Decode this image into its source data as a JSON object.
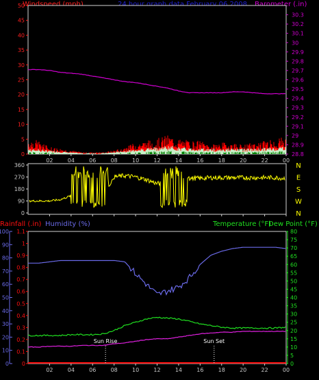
{
  "header": {
    "left_label": "Windspeed (mph)",
    "center_label": "24 hour graph data   February 06 2008",
    "right_label": "Barometer (.in)"
  },
  "colors": {
    "frame": "#d4d4d4",
    "wind_axis": "#ff2020",
    "barometer": "#d000d0",
    "title": "#2020d0",
    "direction": "#ffff00",
    "humidity": "#6a6ae8",
    "temperature": "#20e020",
    "dewpoint": "#e020e0",
    "rainfall": "#ff1010",
    "gust": "#ff0000",
    "wind_avg": "#c8f0c8",
    "wind_core": "#008000",
    "sun_marker": "#ffffff"
  },
  "x_axis": {
    "tick_labels": [
      "02",
      "04",
      "06",
      "08",
      "10",
      "12",
      "14",
      "16",
      "18",
      "20",
      "22",
      "00"
    ]
  },
  "chart_data": [
    {
      "type": "line",
      "name": "wind-barometer-panel",
      "left_axis": {
        "label": "Windspeed (mph)",
        "ylim": [
          0,
          50
        ],
        "ticks": [
          0,
          5,
          10,
          15,
          20,
          25,
          30,
          35,
          40,
          45,
          50
        ]
      },
      "right_axis": {
        "label": "Barometer (.in)",
        "ylim": [
          28.8,
          30.4
        ],
        "ticks": [
          "28.8",
          "28.9",
          "29",
          "29.1",
          "29.2",
          "29.3",
          "29.4",
          "29.5",
          "29.6",
          "29.7",
          "29.8",
          "29.9",
          "30",
          "30.1",
          "30.2",
          "30.3"
        ]
      },
      "x": [
        0,
        1,
        2,
        3,
        4,
        5,
        6,
        7,
        8,
        9,
        10,
        11,
        12,
        13,
        14,
        15,
        16,
        17,
        18,
        19,
        20,
        21,
        22,
        23,
        24
      ],
      "series": [
        {
          "name": "Barometer",
          "axis": "right",
          "values": [
            29.71,
            29.71,
            29.7,
            29.68,
            29.67,
            29.66,
            29.64,
            29.62,
            29.6,
            29.58,
            29.57,
            29.55,
            29.53,
            29.51,
            29.48,
            29.46,
            29.46,
            29.46,
            29.46,
            29.47,
            29.47,
            29.46,
            29.45,
            29.45,
            29.45
          ]
        },
        {
          "name": "Gust",
          "axis": "left",
          "values": [
            4,
            3.5,
            2,
            1.5,
            1,
            0.5,
            0.5,
            0.5,
            1,
            2,
            3,
            3.5,
            4,
            5,
            4,
            3.5,
            3.5,
            2.5,
            3,
            3,
            2.5,
            3,
            3.5,
            4,
            4.5
          ]
        },
        {
          "name": "Wind Speed",
          "axis": "left",
          "values": [
            1.5,
            1.5,
            1,
            0.8,
            0.5,
            0.3,
            0.3,
            0.3,
            0.6,
            1,
            1.5,
            1.8,
            2,
            2.5,
            2,
            1.8,
            1.8,
            1.5,
            1.6,
            1.6,
            1.5,
            1.6,
            1.8,
            2,
            2.5
          ]
        }
      ]
    },
    {
      "type": "line",
      "name": "wind-direction-panel",
      "left_axis": {
        "ylim": [
          0,
          360
        ],
        "ticks": [
          0,
          90,
          180,
          270,
          360
        ]
      },
      "right_axis": {
        "ticks": [
          "N",
          "W",
          "S",
          "E",
          "N"
        ]
      },
      "x": [
        0,
        1,
        2,
        3,
        4,
        5,
        6,
        7,
        8,
        9,
        10,
        11,
        12,
        13,
        14,
        15,
        16,
        17,
        18,
        19,
        20,
        21,
        22,
        23,
        24
      ],
      "series": [
        {
          "name": "Wind Direction",
          "values": [
            90,
            90,
            90,
            100,
            130,
            140,
            130,
            120,
            270,
            280,
            270,
            250,
            220,
            230,
            270,
            260,
            260,
            265,
            265,
            265,
            265,
            265,
            265,
            265,
            260
          ]
        }
      ]
    },
    {
      "type": "line",
      "name": "temperature-humidity-panel",
      "labels": {
        "rainfall": "Rainfall (.in)",
        "humidity": "Humidity (%)",
        "temperature": "Temperature (°F)",
        "dewpoint": "Dew Point (°F)"
      },
      "humidity_axis": {
        "ylim": [
          0,
          100
        ],
        "ticks": [
          0,
          10,
          20,
          30,
          40,
          50,
          60,
          70,
          80,
          90,
          100
        ]
      },
      "rainfall_axis": {
        "ylim": [
          0,
          1.1
        ],
        "ticks": [
          "0",
          "0.1",
          "0.2",
          "0.3",
          "0.4",
          "0.5",
          "0.6",
          "0.7",
          "0.8",
          "0.9",
          "1",
          "1.1"
        ]
      },
      "temperature_axis": {
        "ylim": [
          0,
          80
        ],
        "ticks": [
          0,
          5,
          10,
          15,
          20,
          25,
          30,
          35,
          40,
          45,
          50,
          55,
          60,
          65,
          70,
          75,
          80
        ]
      },
      "annotations": [
        {
          "label": "Sun Rise",
          "time": 7.2
        },
        {
          "label": "Sun Set",
          "time": 17.3
        }
      ],
      "x": [
        0,
        1,
        2,
        3,
        4,
        5,
        6,
        7,
        8,
        9,
        10,
        11,
        12,
        13,
        14,
        15,
        16,
        17,
        18,
        19,
        20,
        21,
        22,
        23,
        24
      ],
      "series": [
        {
          "name": "Humidity",
          "axis": "humidity",
          "values": [
            76,
            76,
            77,
            78,
            78,
            78,
            78,
            78,
            78,
            77,
            68,
            60,
            52,
            55,
            58,
            65,
            75,
            82,
            85,
            87,
            88,
            88,
            88,
            88,
            87
          ]
        },
        {
          "name": "Temperature",
          "axis": "temperature",
          "values": [
            17,
            17,
            17,
            17,
            17.5,
            17.5,
            17.5,
            18,
            20,
            23,
            25,
            27,
            28,
            27.5,
            27,
            25.5,
            24,
            23,
            22,
            21.5,
            21.5,
            21.5,
            21.5,
            21.5,
            22
          ]
        },
        {
          "name": "Dew Point",
          "axis": "temperature",
          "values": [
            10,
            10,
            10.5,
            10.5,
            10.5,
            11,
            11,
            11,
            12,
            12.5,
            13.5,
            14.5,
            15,
            15,
            16,
            17,
            18,
            18.5,
            19,
            19,
            19.5,
            19.5,
            19.5,
            19.5,
            19.5
          ]
        },
        {
          "name": "Rainfall",
          "axis": "rainfall",
          "values": [
            0,
            0,
            0,
            0,
            0,
            0,
            0,
            0,
            0,
            0,
            0,
            0,
            0,
            0,
            0,
            0,
            0,
            0,
            0,
            0,
            0,
            0,
            0,
            0,
            0
          ]
        }
      ]
    }
  ]
}
